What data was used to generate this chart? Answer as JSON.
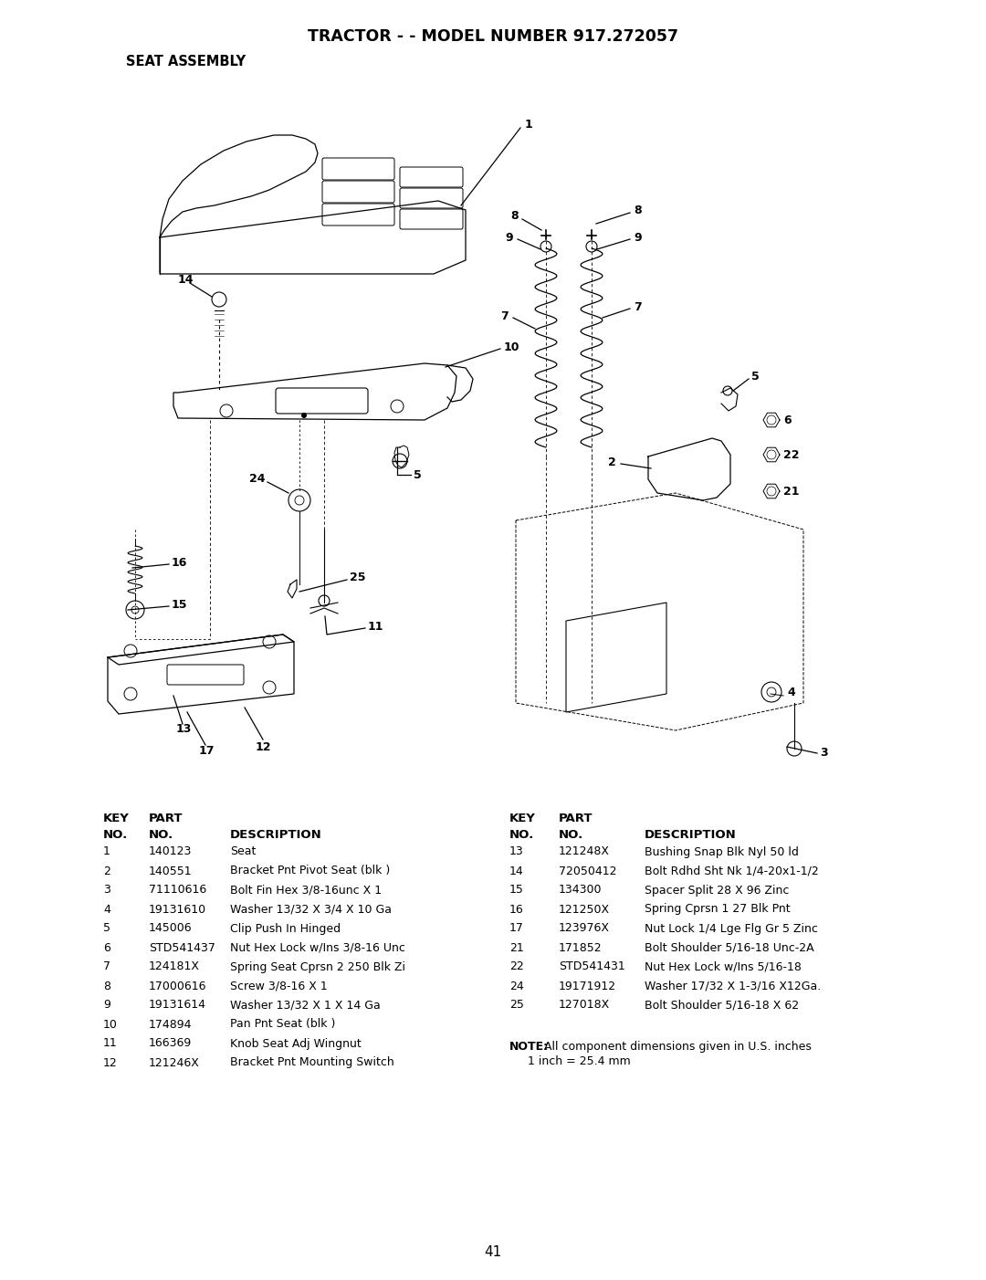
{
  "title": "TRACTOR - - MODEL NUMBER 917.272057",
  "subtitle": "SEAT ASSEMBLY",
  "page_number": "41",
  "background_color": "#ffffff",
  "title_fontsize": 12.5,
  "subtitle_fontsize": 10.5,
  "parts_left": [
    [
      "1",
      "140123",
      "Seat"
    ],
    [
      "2",
      "140551",
      "Bracket Pnt Pivot Seat (blk )"
    ],
    [
      "3",
      "71110616",
      "Bolt Fin Hex 3/8-16unc X 1"
    ],
    [
      "4",
      "19131610",
      "Washer 13/32 X 3/4 X 10 Ga"
    ],
    [
      "5",
      "145006",
      "Clip Push In Hinged"
    ],
    [
      "6",
      "STD541437",
      "Nut Hex Lock w/Ins 3/8-16 Unc"
    ],
    [
      "7",
      "124181X",
      "Spring Seat Cprsn 2 250 Blk Zi"
    ],
    [
      "8",
      "17000616",
      "Screw 3/8-16 X 1"
    ],
    [
      "9",
      "19131614",
      "Washer 13/32 X 1 X 14 Ga"
    ],
    [
      "10",
      "174894",
      "Pan Pnt Seat (blk )"
    ],
    [
      "11",
      "166369",
      "Knob Seat Adj Wingnut"
    ],
    [
      "12",
      "121246X",
      "Bracket Pnt Mounting Switch"
    ]
  ],
  "parts_right": [
    [
      "13",
      "121248X",
      "Bushing Snap Blk Nyl 50 ld"
    ],
    [
      "14",
      "72050412",
      "Bolt Rdhd Sht Nk 1/4-20x1-1/2"
    ],
    [
      "15",
      "134300",
      "Spacer Split 28 X 96 Zinc"
    ],
    [
      "16",
      "121250X",
      "Spring Cprsn 1 27 Blk Pnt"
    ],
    [
      "17",
      "123976X",
      "Nut Lock 1/4 Lge Flg Gr 5 Zinc"
    ],
    [
      "21",
      "171852",
      "Bolt Shoulder 5/16-18 Unc-2A"
    ],
    [
      "22",
      "STD541431",
      "Nut Hex Lock w/Ins 5/16-18"
    ],
    [
      "24",
      "19171912",
      "Washer 17/32 X 1-3/16 X12Ga."
    ],
    [
      "25",
      "127018X",
      "Bolt Shoulder 5/16-18 X 62"
    ]
  ],
  "note_bold": "NOTE:",
  "note_normal": " All component dimensions given in U.S. inches\n      1 inch = 25.4 mm"
}
